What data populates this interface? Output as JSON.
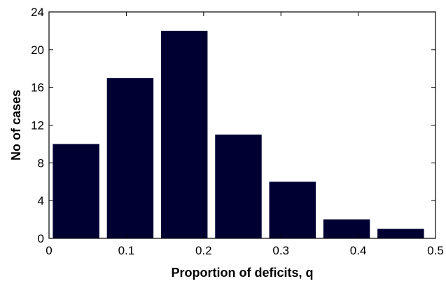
{
  "chart_data": {
    "type": "bar",
    "title": "",
    "xlabel": "Proportion of deficits, q",
    "ylabel": "No of cases",
    "xlim": [
      0,
      0.5
    ],
    "ylim": [
      0,
      24
    ],
    "xticks": [
      0,
      0.1,
      0.2,
      0.3,
      0.4,
      0.5
    ],
    "xtick_labels": [
      "0",
      "0.1",
      "0.2",
      "0.3",
      "0.4",
      "0.5"
    ],
    "yticks": [
      0,
      4,
      8,
      12,
      16,
      20,
      24
    ],
    "ytick_labels": [
      "0",
      "4",
      "8",
      "12",
      "16",
      "20",
      "24"
    ],
    "bin_centers": [
      0.035,
      0.105,
      0.175,
      0.245,
      0.315,
      0.385,
      0.455
    ],
    "bin_width": 0.07,
    "values": [
      10,
      17,
      22,
      11,
      6,
      2,
      1
    ],
    "bar_color": "#000033",
    "grid": false,
    "legend": "none"
  }
}
